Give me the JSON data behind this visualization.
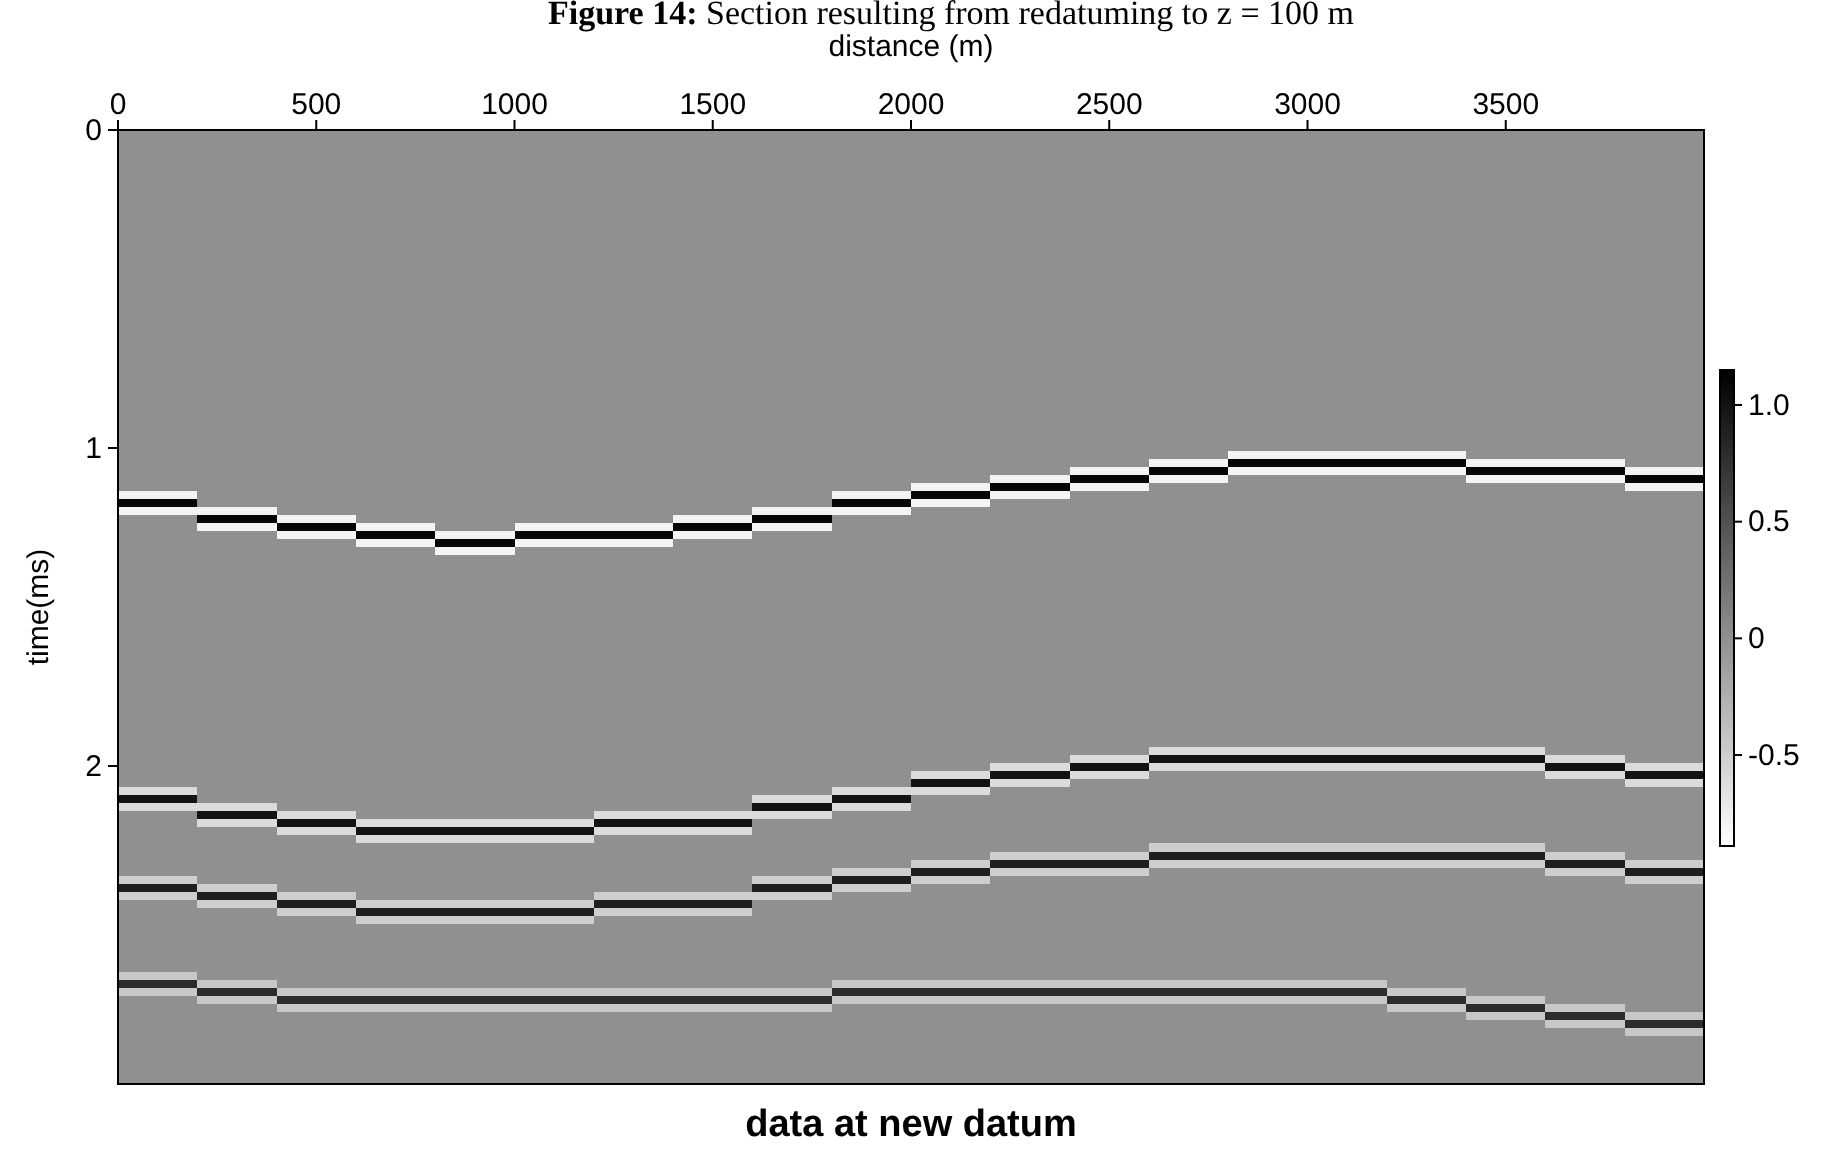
{
  "chart_data": {
    "type": "heatmap",
    "title": "Figure 14: Section resulting from redatuming to z = 100 m",
    "xlabel": "distance (m)",
    "ylabel": "time(ms)",
    "annotations": [
      "data at new datum"
    ],
    "x": [
      100,
      300,
      500,
      700,
      900,
      1100,
      1300,
      1500,
      1700,
      1900,
      2100,
      2300,
      2500,
      2700,
      2900,
      3100,
      3300,
      3500,
      3700,
      3900
    ],
    "xlim": [
      0,
      4000
    ],
    "xticks": [
      0,
      500,
      1000,
      1500,
      2000,
      2500,
      3000,
      3500
    ],
    "ylim": [
      3,
      0
    ],
    "yticks": [
      0,
      1,
      2
    ],
    "clim": [
      -0.89,
      1.15
    ],
    "cticks": [
      -0.5,
      0,
      0.5,
      {
        "value": 1,
        "label": "1.0"
      }
    ],
    "cells": [
      [
        0,
        0,
        0,
        0,
        0,
        0,
        0,
        0,
        0,
        0,
        0,
        0,
        0,
        0,
        0,
        0,
        0,
        0,
        0,
        0
      ],
      [
        0,
        0,
        0,
        0,
        0,
        0,
        0,
        0,
        0,
        0,
        0,
        0,
        0,
        0,
        0,
        0,
        0,
        0,
        0,
        0
      ],
      [
        0,
        0,
        0,
        0,
        0,
        0,
        0,
        0,
        0,
        0,
        0,
        0,
        0,
        0,
        0,
        0,
        0,
        0,
        0,
        0
      ],
      [
        0,
        0,
        0,
        0,
        0,
        0,
        0,
        0,
        0,
        0,
        0,
        0,
        0,
        0,
        0,
        0,
        0,
        0,
        0,
        0
      ],
      [
        0,
        0,
        0,
        0,
        0,
        0,
        0,
        0,
        0,
        0,
        0,
        0,
        0,
        0,
        0,
        0,
        0,
        0,
        0,
        0
      ],
      [
        0,
        0,
        0,
        0,
        0,
        0,
        0,
        0,
        0,
        0,
        0,
        0,
        0,
        0,
        0,
        0,
        0,
        0,
        0,
        0
      ],
      [
        0,
        0,
        0,
        0,
        0,
        0,
        0,
        0,
        0,
        0,
        0,
        0,
        0,
        0,
        0,
        0,
        0,
        0,
        0,
        0
      ],
      [
        0,
        0,
        0,
        0,
        0,
        0,
        0,
        0,
        0,
        0,
        0,
        0,
        0,
        0,
        0,
        0,
        0,
        0,
        0,
        0
      ],
      [
        0,
        0,
        0,
        0,
        0,
        0,
        0,
        0,
        0,
        0,
        0,
        0,
        0,
        0,
        0,
        0,
        0,
        0,
        0,
        0
      ],
      [
        0,
        0,
        0,
        0,
        0,
        0,
        0,
        0,
        0,
        0,
        0,
        0,
        0,
        0,
        0,
        0,
        0,
        0,
        0,
        0
      ],
      [
        0,
        0,
        0,
        0,
        0,
        0,
        0,
        0,
        0,
        0,
        0,
        0,
        0,
        0,
        0,
        0,
        0,
        0,
        0,
        0
      ],
      [
        0,
        0,
        0,
        0,
        0,
        0,
        0,
        0,
        0,
        0,
        0,
        0,
        0,
        0,
        0,
        0,
        0,
        0,
        0,
        0
      ],
      [
        0,
        0,
        0,
        0,
        0,
        0,
        0,
        0,
        0,
        0,
        0,
        0,
        0,
        0,
        0,
        0,
        0,
        0,
        0,
        0
      ],
      [
        0,
        0,
        0,
        0,
        0,
        0,
        0,
        0,
        0,
        0,
        0,
        0,
        0,
        0,
        0,
        0,
        0,
        0,
        0,
        0
      ],
      [
        0,
        0,
        0,
        0,
        0,
        0,
        0,
        0,
        0,
        0,
        0,
        0,
        0,
        0,
        0,
        0,
        0,
        0,
        0,
        0
      ],
      [
        0,
        0,
        0,
        0,
        0,
        0,
        0,
        0,
        0,
        0,
        0,
        0,
        0,
        0,
        0,
        0,
        0,
        0,
        0,
        0
      ],
      [
        0,
        0,
        0,
        0,
        0,
        0,
        0,
        0,
        0,
        0,
        0,
        0,
        0,
        0,
        0,
        0,
        0,
        0,
        0,
        0
      ],
      [
        0,
        0,
        0,
        0,
        0,
        0,
        0,
        0,
        0,
        0,
        0,
        0,
        0,
        0,
        0,
        0,
        0,
        0,
        0,
        0
      ],
      [
        0,
        0,
        0,
        0,
        0,
        0,
        0,
        0,
        0,
        0,
        0,
        0,
        0,
        0,
        0,
        0,
        0,
        0,
        0,
        0
      ],
      [
        0,
        0,
        0,
        0,
        0,
        0,
        0,
        0,
        0,
        0,
        0,
        0,
        0,
        0,
        0,
        0,
        0,
        0,
        0,
        0
      ],
      [
        0,
        0,
        0,
        0,
        0,
        0,
        0,
        0,
        0,
        0,
        0,
        0,
        0,
        0,
        0,
        0,
        0,
        0,
        0,
        0
      ],
      [
        0,
        0,
        0,
        0,
        0,
        0,
        0,
        0,
        0,
        0,
        0,
        0,
        0,
        0,
        0,
        0,
        0,
        0,
        0,
        0
      ],
      [
        0,
        0,
        0,
        0,
        0,
        0,
        0,
        0,
        0,
        0,
        0,
        0,
        0,
        0,
        0,
        0,
        0,
        0,
        0,
        0
      ],
      [
        0,
        0,
        0,
        0,
        0,
        0,
        0,
        0,
        0,
        0,
        0,
        0,
        0,
        0,
        0,
        0,
        0,
        0,
        0,
        0
      ],
      [
        0,
        0,
        0,
        0,
        0,
        0,
        0,
        0,
        0,
        0,
        0,
        0,
        0,
        0,
        0,
        0,
        0,
        0,
        0,
        0
      ],
      [
        0,
        0,
        0,
        0,
        0,
        0,
        0,
        0,
        0,
        0,
        0,
        0,
        0,
        0,
        0,
        0,
        0,
        0,
        0,
        0
      ],
      [
        0,
        0,
        0,
        0,
        0,
        0,
        0,
        0,
        0,
        0,
        0,
        0,
        0,
        0,
        0,
        0,
        0,
        0,
        0,
        0
      ],
      [
        0,
        0,
        0,
        0,
        0,
        0,
        0,
        0,
        0,
        0,
        0,
        0,
        0,
        0,
        0,
        0,
        0,
        0,
        0,
        0
      ],
      [
        0,
        0,
        0,
        0,
        0,
        0,
        0,
        0,
        0,
        0,
        0,
        0,
        0,
        0,
        0,
        0,
        0,
        0,
        0,
        0
      ],
      [
        0,
        0,
        0,
        0,
        0,
        0,
        0,
        0,
        0,
        0,
        0,
        0,
        0,
        0,
        0,
        0,
        0,
        0,
        0,
        0
      ],
      [
        0,
        0,
        0,
        0,
        0,
        0,
        0,
        0,
        0,
        0,
        0,
        0,
        0,
        0,
        0,
        0,
        0,
        0,
        0,
        0
      ],
      [
        0,
        0,
        0,
        0,
        0,
        0,
        0,
        0,
        0,
        0,
        0,
        0,
        0,
        0,
        0,
        0,
        0,
        0,
        0,
        0
      ],
      [
        0,
        0,
        0,
        0,
        0,
        0,
        0,
        0,
        0,
        0,
        0,
        0,
        0,
        0,
        0,
        0,
        0,
        0,
        0,
        0
      ],
      [
        0,
        0,
        0,
        0,
        0,
        0,
        0,
        0,
        0,
        0,
        0,
        0,
        0,
        0,
        0,
        0,
        0,
        0,
        0,
        0
      ],
      [
        0,
        0,
        0,
        0,
        0,
        0,
        0,
        0,
        0,
        0,
        0,
        0,
        0,
        0,
        0,
        0,
        0,
        0,
        0,
        0
      ],
      [
        0,
        0,
        0,
        0,
        0,
        0,
        0,
        0,
        0,
        0,
        0,
        0,
        0,
        0,
        0,
        0,
        0,
        0,
        0,
        0
      ],
      [
        0,
        0,
        0,
        0,
        0,
        0,
        0,
        0,
        0,
        0,
        0,
        0,
        0,
        0,
        0,
        0,
        0,
        0,
        0,
        0
      ],
      [
        0,
        0,
        0,
        0,
        0,
        0,
        0,
        0,
        0,
        0,
        0,
        0,
        0,
        0,
        0,
        0,
        0,
        0,
        0,
        0
      ],
      [
        0,
        0,
        0,
        0,
        0,
        0,
        0,
        0,
        0,
        0,
        0,
        0,
        0,
        0,
        0,
        0,
        0,
        0,
        0,
        0
      ],
      [
        0,
        0,
        0,
        0,
        0,
        0,
        0,
        0,
        0,
        0,
        0,
        0,
        0,
        0,
        0,
        0,
        0,
        0,
        0,
        0
      ],
      [
        0,
        0,
        0,
        0,
        0,
        0,
        0,
        0,
        0,
        0,
        0,
        0,
        0,
        0,
        -0.8,
        -0.8,
        -0.8,
        0,
        0,
        0
      ],
      [
        0,
        0,
        0,
        0,
        0,
        0,
        0,
        0,
        0,
        0,
        0,
        0,
        0,
        -0.8,
        1.1,
        1.1,
        1.1,
        -0.8,
        -0.8,
        0
      ],
      [
        0,
        0,
        0,
        0,
        0,
        0,
        0,
        0,
        0,
        0,
        0,
        0,
        -0.8,
        1.1,
        -0.8,
        -0.8,
        -0.8,
        1.1,
        1.1,
        -0.8
      ],
      [
        0,
        0,
        0,
        0,
        0,
        0,
        0,
        0,
        0,
        0,
        0,
        -0.8,
        1.1,
        -0.8,
        0,
        0,
        0,
        -0.8,
        -0.8,
        1.1
      ],
      [
        0,
        0,
        0,
        0,
        0,
        0,
        0,
        0,
        0,
        0,
        -0.8,
        1.1,
        -0.8,
        0,
        0,
        0,
        0,
        0,
        0,
        -0.8
      ],
      [
        -0.8,
        0,
        0,
        0,
        0,
        0,
        0,
        0,
        0,
        -0.8,
        1.1,
        -0.8,
        0,
        0,
        0,
        0,
        0,
        0,
        0,
        0
      ],
      [
        1.1,
        0,
        0,
        0,
        0,
        0,
        0,
        0,
        0,
        1.1,
        -0.8,
        0,
        0,
        0,
        0,
        0,
        0,
        0,
        0,
        0
      ],
      [
        -0.8,
        -0.8,
        0,
        0,
        0,
        0,
        0,
        0,
        -0.8,
        -0.8,
        0,
        0,
        0,
        0,
        0,
        0,
        0,
        0,
        0,
        0
      ],
      [
        0,
        1.1,
        -0.8,
        0,
        0,
        0,
        0,
        -0.8,
        1.1,
        0,
        0,
        0,
        0,
        0,
        0,
        0,
        0,
        0,
        0,
        0
      ],
      [
        0,
        -0.8,
        1.1,
        -0.8,
        0,
        -0.8,
        -0.8,
        1.1,
        -0.8,
        0,
        0,
        0,
        0,
        0,
        0,
        0,
        0,
        0,
        0,
        0
      ],
      [
        0,
        0,
        -0.8,
        1.1,
        -0.8,
        1.1,
        1.1,
        -0.8,
        0,
        0,
        0,
        0,
        0,
        0,
        0,
        0,
        0,
        0,
        0,
        0
      ],
      [
        0,
        0,
        0,
        -0.8,
        1.1,
        -0.8,
        -0.8,
        0,
        0,
        0,
        0,
        0,
        0,
        0,
        0,
        0,
        0,
        0,
        0,
        0
      ],
      [
        0,
        0,
        0,
        0,
        -0.8,
        0,
        0,
        0,
        0,
        0,
        0,
        0,
        0,
        0,
        0,
        0,
        0,
        0,
        0,
        0
      ],
      [
        0,
        0,
        0,
        0,
        0,
        0,
        0,
        0,
        0,
        0,
        0,
        0,
        0,
        0,
        0,
        0,
        0,
        0,
        0,
        0
      ],
      [
        0,
        0,
        0,
        0,
        0,
        0,
        0,
        0,
        0,
        0,
        0,
        0,
        0,
        0,
        0,
        0,
        0,
        0,
        0,
        0
      ],
      [
        0,
        0,
        0,
        0,
        0,
        0,
        0,
        0,
        0,
        0,
        0,
        0,
        0,
        0,
        0,
        0,
        0,
        0,
        0,
        0
      ],
      [
        0,
        0,
        0,
        0,
        0,
        0,
        0,
        0,
        0,
        0,
        0,
        0,
        0,
        0,
        0,
        0,
        0,
        0,
        0,
        0
      ],
      [
        0,
        0,
        0,
        0,
        0,
        0,
        0,
        0,
        0,
        0,
        0,
        0,
        0,
        0,
        0,
        0,
        0,
        0,
        0,
        0
      ],
      [
        0,
        0,
        0,
        0,
        0,
        0,
        0,
        0,
        0,
        0,
        0,
        0,
        0,
        0,
        0,
        0,
        0,
        0,
        0,
        0
      ],
      [
        0,
        0,
        0,
        0,
        0,
        0,
        0,
        0,
        0,
        0,
        0,
        0,
        0,
        0,
        0,
        0,
        0,
        0,
        0,
        0
      ],
      [
        0,
        0,
        0,
        0,
        0,
        0,
        0,
        0,
        0,
        0,
        0,
        0,
        0,
        0,
        0,
        0,
        0,
        0,
        0,
        0
      ],
      [
        0,
        0,
        0,
        0,
        0,
        0,
        0,
        0,
        0,
        0,
        0,
        0,
        0,
        0,
        0,
        0,
        0,
        0,
        0,
        0
      ],
      [
        0,
        0,
        0,
        0,
        0,
        0,
        0,
        0,
        0,
        0,
        0,
        0,
        0,
        0,
        0,
        0,
        0,
        0,
        0,
        0
      ],
      [
        0,
        0,
        0,
        0,
        0,
        0,
        0,
        0,
        0,
        0,
        0,
        0,
        0,
        0,
        0,
        0,
        0,
        0,
        0,
        0
      ],
      [
        0,
        0,
        0,
        0,
        0,
        0,
        0,
        0,
        0,
        0,
        0,
        0,
        0,
        0,
        0,
        0,
        0,
        0,
        0,
        0
      ],
      [
        0,
        0,
        0,
        0,
        0,
        0,
        0,
        0,
        0,
        0,
        0,
        0,
        0,
        0,
        0,
        0,
        0,
        0,
        0,
        0
      ],
      [
        0,
        0,
        0,
        0,
        0,
        0,
        0,
        0,
        0,
        0,
        0,
        0,
        0,
        0,
        0,
        0,
        0,
        0,
        0,
        0
      ],
      [
        0,
        0,
        0,
        0,
        0,
        0,
        0,
        0,
        0,
        0,
        0,
        0,
        0,
        0,
        0,
        0,
        0,
        0,
        0,
        0
      ],
      [
        0,
        0,
        0,
        0,
        0,
        0,
        0,
        0,
        0,
        0,
        0,
        0,
        0,
        0,
        0,
        0,
        0,
        0,
        0,
        0
      ],
      [
        0,
        0,
        0,
        0,
        0,
        0,
        0,
        0,
        0,
        0,
        0,
        0,
        0,
        0,
        0,
        0,
        0,
        0,
        0,
        0
      ],
      [
        0,
        0,
        0,
        0,
        0,
        0,
        0,
        0,
        0,
        0,
        0,
        0,
        0,
        0,
        0,
        0,
        0,
        0,
        0,
        0
      ],
      [
        0,
        0,
        0,
        0,
        0,
        0,
        0,
        0,
        0,
        0,
        0,
        0,
        0,
        0,
        0,
        0,
        0,
        0,
        0,
        0
      ],
      [
        0,
        0,
        0,
        0,
        0,
        0,
        0,
        0,
        0,
        0,
        0,
        0,
        0,
        0,
        0,
        0,
        0,
        0,
        0,
        0
      ],
      [
        0,
        0,
        0,
        0,
        0,
        0,
        0,
        0,
        0,
        0,
        0,
        0,
        0,
        0,
        0,
        0,
        0,
        0,
        0,
        0
      ],
      [
        0,
        0,
        0,
        0,
        0,
        0,
        0,
        0,
        0,
        0,
        0,
        0,
        0,
        0,
        0,
        0,
        0,
        0,
        0,
        0
      ],
      [
        0,
        0,
        0,
        0,
        0,
        0,
        0,
        0,
        0,
        0,
        0,
        0,
        0,
        0,
        0,
        0,
        0,
        0,
        0,
        0
      ],
      [
        0,
        0,
        0,
        0,
        0,
        0,
        0,
        0,
        0,
        0,
        0,
        0,
        0,
        0,
        0,
        0,
        0,
        0,
        0,
        0
      ],
      [
        0,
        0,
        0,
        0,
        0,
        0,
        0,
        0,
        0,
        0,
        0,
        0,
        0,
        -0.6,
        -0.6,
        -0.6,
        -0.6,
        -0.6,
        0,
        0
      ],
      [
        0,
        0,
        0,
        0,
        0,
        0,
        0,
        0,
        0,
        0,
        0,
        0,
        -0.6,
        1,
        1,
        1,
        1,
        1,
        -0.6,
        0
      ],
      [
        0,
        0,
        0,
        0,
        0,
        0,
        0,
        0,
        0,
        0,
        0,
        -0.6,
        1,
        -0.6,
        -0.6,
        -0.6,
        -0.6,
        -0.6,
        1,
        -0.6
      ],
      [
        0,
        0,
        0,
        0,
        0,
        0,
        0,
        0,
        0,
        0,
        -0.6,
        1,
        -0.6,
        0,
        0,
        0,
        0,
        0,
        -0.6,
        1
      ],
      [
        0,
        0,
        0,
        0,
        0,
        0,
        0,
        0,
        0,
        0,
        1,
        -0.6,
        0,
        0,
        0,
        0,
        0,
        0,
        0,
        -0.6
      ],
      [
        -0.6,
        0,
        0,
        0,
        0,
        0,
        0,
        0,
        0,
        -0.6,
        -0.6,
        0,
        0,
        0,
        0,
        0,
        0,
        0,
        0,
        0
      ],
      [
        1,
        0,
        0,
        0,
        0,
        0,
        0,
        0,
        -0.6,
        1,
        0,
        0,
        0,
        0,
        0,
        0,
        0,
        0,
        0,
        0
      ],
      [
        -0.6,
        -0.6,
        0,
        0,
        0,
        0,
        0,
        0,
        1,
        -0.6,
        0,
        0,
        0,
        0,
        0,
        0,
        0,
        0,
        0,
        0
      ],
      [
        0,
        1,
        -0.6,
        0,
        0,
        0,
        -0.6,
        -0.6,
        -0.6,
        0,
        0,
        0,
        0,
        0,
        0,
        0,
        0,
        0,
        0,
        0
      ],
      [
        0,
        -0.6,
        1,
        -0.6,
        -0.6,
        -0.6,
        1,
        1,
        0,
        0,
        0,
        0,
        0,
        0,
        0,
        0,
        0,
        0,
        0,
        0
      ],
      [
        0,
        0,
        -0.6,
        1,
        1,
        1,
        -0.6,
        -0.6,
        0,
        0,
        0,
        0,
        0,
        0,
        0,
        0,
        0,
        0,
        0,
        0
      ],
      [
        0,
        0,
        0,
        -0.6,
        -0.6,
        -0.6,
        0,
        0,
        0,
        0,
        0,
        0,
        0,
        0,
        0,
        0,
        0,
        0,
        0,
        0
      ],
      [
        0,
        0,
        0,
        0,
        0,
        0,
        0,
        0,
        0,
        0,
        0,
        0,
        0,
        -0.5,
        -0.5,
        -0.5,
        -0.5,
        -0.5,
        0,
        0
      ],
      [
        0,
        0,
        0,
        0,
        0,
        0,
        0,
        0,
        0,
        0,
        0,
        -0.5,
        -0.5,
        0.9,
        0.9,
        0.9,
        0.9,
        0.9,
        -0.5,
        0
      ],
      [
        0,
        0,
        0,
        0,
        0,
        0,
        0,
        0,
        0,
        0,
        -0.5,
        0.9,
        0.9,
        -0.5,
        -0.5,
        -0.5,
        -0.5,
        -0.5,
        0.9,
        -0.5
      ],
      [
        0,
        0,
        0,
        0,
        0,
        0,
        0,
        0,
        0,
        -0.5,
        0.9,
        -0.5,
        -0.5,
        0,
        0,
        0,
        0,
        0,
        -0.5,
        0.9
      ],
      [
        -0.5,
        0,
        0,
        0,
        0,
        0,
        0,
        0,
        -0.5,
        0.9,
        -0.5,
        0,
        0,
        0,
        0,
        0,
        0,
        0,
        0,
        -0.5
      ],
      [
        0.9,
        -0.5,
        0,
        0,
        0,
        0,
        0,
        0,
        0.9,
        -0.5,
        0,
        0,
        0,
        0,
        0,
        0,
        0,
        0,
        0,
        0
      ],
      [
        -0.5,
        0.9,
        -0.5,
        0,
        0,
        0,
        -0.5,
        -0.5,
        -0.5,
        0,
        0,
        0,
        0,
        0,
        0,
        0,
        0,
        0,
        0,
        0
      ],
      [
        0,
        -0.5,
        0.9,
        -0.5,
        -0.5,
        -0.5,
        0.9,
        0.9,
        0,
        0,
        0,
        0,
        0,
        0,
        0,
        0,
        0,
        0,
        0,
        0
      ],
      [
        0,
        0,
        -0.5,
        0.9,
        0.9,
        0.9,
        -0.5,
        -0.5,
        0,
        0,
        0,
        0,
        0,
        0,
        0,
        0,
        0,
        0,
        0,
        0
      ],
      [
        0,
        0,
        0,
        -0.5,
        -0.5,
        -0.5,
        0,
        0,
        0,
        0,
        0,
        0,
        0,
        0,
        0,
        0,
        0,
        0,
        0,
        0
      ],
      [
        0,
        0,
        0,
        0,
        0,
        0,
        0,
        0,
        0,
        0,
        0,
        0,
        0,
        0,
        0,
        0,
        0,
        0,
        0,
        0
      ],
      [
        0,
        0,
        0,
        0,
        0,
        0,
        0,
        0,
        0,
        0,
        0,
        0,
        0,
        0,
        0,
        0,
        0,
        0,
        0,
        0
      ],
      [
        0,
        0,
        0,
        0,
        0,
        0,
        0,
        0,
        0,
        0,
        0,
        0,
        0,
        0,
        0,
        0,
        0,
        0,
        0,
        0
      ],
      [
        0,
        0,
        0,
        0,
        0,
        0,
        0,
        0,
        0,
        0,
        0,
        0,
        0,
        0,
        0,
        0,
        0,
        0,
        0,
        0
      ],
      [
        0,
        0,
        0,
        0,
        0,
        0,
        0,
        0,
        0,
        0,
        0,
        0,
        0,
        0,
        0,
        0,
        0,
        0,
        0,
        0
      ],
      [
        0,
        0,
        0,
        0,
        0,
        0,
        0,
        0,
        0,
        0,
        0,
        0,
        0,
        0,
        0,
        0,
        0,
        0,
        0,
        0
      ],
      [
        -0.45,
        0,
        0,
        0,
        0,
        0,
        0,
        0,
        0,
        0,
        0,
        0,
        0,
        0,
        0,
        0,
        0,
        0,
        0,
        0
      ],
      [
        0.8,
        -0.45,
        0,
        0,
        0,
        0,
        0,
        0,
        0,
        -0.45,
        -0.45,
        -0.45,
        -0.45,
        -0.45,
        -0.45,
        -0.45,
        0,
        0,
        0,
        0
      ],
      [
        -0.45,
        0.8,
        -0.45,
        -0.45,
        -0.45,
        -0.45,
        -0.45,
        -0.45,
        -0.45,
        0.8,
        0.8,
        0.8,
        0.8,
        0.8,
        0.8,
        0.8,
        -0.45,
        0,
        0,
        0
      ],
      [
        0,
        -0.45,
        0.8,
        0.8,
        0.8,
        0.8,
        0.8,
        0.8,
        0.8,
        -0.45,
        -0.45,
        -0.45,
        -0.45,
        -0.45,
        -0.45,
        -0.45,
        0.8,
        -0.45,
        0,
        0
      ],
      [
        0,
        0,
        -0.45,
        -0.45,
        -0.45,
        -0.45,
        -0.45,
        -0.45,
        -0.45,
        0,
        0,
        0,
        0,
        0,
        0,
        0,
        -0.45,
        0.8,
        -0.45,
        0
      ],
      [
        0,
        0,
        0,
        0,
        0,
        0,
        0,
        0,
        0,
        0,
        0,
        0,
        0,
        0,
        0,
        0,
        0,
        -0.45,
        0.8,
        -0.45
      ],
      [
        0,
        0,
        0,
        0,
        0,
        0,
        0,
        0,
        0,
        0,
        0,
        0,
        0,
        0,
        0,
        0,
        0,
        0,
        -0.45,
        0.8
      ],
      [
        0,
        0,
        0,
        0,
        0,
        0,
        0,
        0,
        0,
        0,
        0,
        0,
        0,
        0,
        0,
        0,
        0,
        0,
        0,
        -0.45
      ],
      [
        0,
        0,
        0,
        0,
        0,
        0,
        0,
        0,
        0,
        0,
        0,
        0,
        0,
        0,
        0,
        0,
        0,
        0,
        0,
        0
      ],
      [
        0,
        0,
        0,
        0,
        0,
        0,
        0,
        0,
        0,
        0,
        0,
        0,
        0,
        0,
        0,
        0,
        0,
        0,
        0,
        0
      ],
      [
        0,
        0,
        0,
        0,
        0,
        0,
        0,
        0,
        0,
        0,
        0,
        0,
        0,
        0,
        0,
        0,
        0,
        0,
        0,
        0
      ],
      [
        0,
        0,
        0,
        0,
        0,
        0,
        0,
        0,
        0,
        0,
        0,
        0,
        0,
        0,
        0,
        0,
        0,
        0,
        0,
        0
      ],
      [
        0,
        0,
        0,
        0,
        0,
        0,
        0,
        0,
        0,
        0,
        0,
        0,
        0,
        0,
        0,
        0,
        0,
        0,
        0,
        0
      ],
      [
        0,
        0,
        0,
        0,
        0,
        0,
        0,
        0,
        0,
        0,
        0,
        0,
        0,
        0,
        0,
        0,
        0,
        0,
        0,
        0
      ]
    ]
  }
}
